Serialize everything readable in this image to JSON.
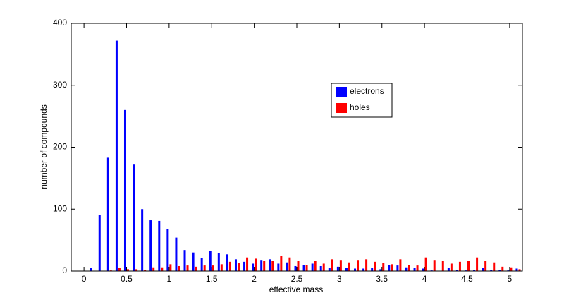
{
  "chart_data": {
    "type": "bar",
    "xlabel": "effective mass",
    "ylabel": "number of compounds",
    "x": [
      0.1,
      0.2,
      0.3,
      0.4,
      0.5,
      0.6,
      0.7,
      0.8,
      0.9,
      1.0,
      1.1,
      1.2,
      1.3,
      1.4,
      1.5,
      1.6,
      1.7,
      1.8,
      1.9,
      2.0,
      2.1,
      2.2,
      2.3,
      2.4,
      2.5,
      2.6,
      2.7,
      2.8,
      2.9,
      3.0,
      3.1,
      3.2,
      3.3,
      3.4,
      3.5,
      3.6,
      3.7,
      3.8,
      3.9,
      4.0,
      4.1,
      4.2,
      4.3,
      4.4,
      4.5,
      4.6,
      4.7,
      4.8,
      4.9,
      5.0,
      5.1
    ],
    "series": [
      {
        "name": "electrons",
        "color": "#0000ff",
        "values": [
          5,
          91,
          183,
          372,
          260,
          173,
          100,
          82,
          81,
          68,
          54,
          34,
          30,
          21,
          32,
          29,
          27,
          19,
          15,
          12,
          18,
          19,
          12,
          14,
          8,
          10,
          12,
          8,
          5,
          7,
          5,
          4,
          4,
          5,
          3,
          10,
          9,
          6,
          5,
          4,
          1,
          0,
          5,
          2,
          1,
          2,
          5,
          2,
          2,
          1,
          4
        ]
      },
      {
        "name": "holes",
        "color": "#ff0000",
        "values": [
          0,
          0,
          1,
          5,
          3,
          3,
          2,
          6,
          6,
          11,
          8,
          9,
          7,
          9,
          9,
          11,
          15,
          13,
          22,
          20,
          16,
          17,
          24,
          22,
          17,
          10,
          16,
          12,
          19,
          18,
          14,
          18,
          19,
          15,
          13,
          11,
          19,
          10,
          9,
          22,
          18,
          17,
          12,
          15,
          17,
          22,
          16,
          14,
          7,
          6,
          3
        ]
      }
    ],
    "xlim": [
      -0.15,
      5.15
    ],
    "xticks": [
      0,
      0.5,
      1,
      1.5,
      2,
      2.5,
      3,
      3.5,
      4,
      4.5,
      5
    ],
    "ylim": [
      0,
      400
    ],
    "yticks": [
      0,
      100,
      200,
      300,
      400
    ],
    "legend": "north-east"
  }
}
